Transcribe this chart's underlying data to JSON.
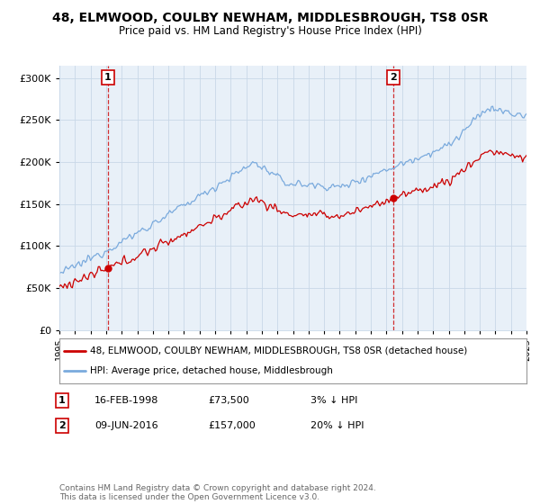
{
  "title1": "48, ELMWOOD, COULBY NEWHAM, MIDDLESBROUGH, TS8 0SR",
  "title2": "Price paid vs. HM Land Registry's House Price Index (HPI)",
  "ylim": [
    0,
    315000
  ],
  "yticks": [
    0,
    50000,
    100000,
    150000,
    200000,
    250000,
    300000
  ],
  "sale1_t": 1998.12,
  "sale1_p": 73500,
  "sale2_t": 2016.44,
  "sale2_p": 157000,
  "legend_line1": "48, ELMWOOD, COULBY NEWHAM, MIDDLESBROUGH, TS8 0SR (detached house)",
  "legend_line2": "HPI: Average price, detached house, Middlesbrough",
  "annotation1_date": "16-FEB-1998",
  "annotation1_price": "£73,500",
  "annotation1_hpi": "3% ↓ HPI",
  "annotation2_date": "09-JUN-2016",
  "annotation2_price": "£157,000",
  "annotation2_hpi": "20% ↓ HPI",
  "footer": "Contains HM Land Registry data © Crown copyright and database right 2024.\nThis data is licensed under the Open Government Licence v3.0.",
  "hpi_color": "#7aaadd",
  "price_color": "#cc0000",
  "plot_bg": "#e8f0f8",
  "grid_color": "#c8d8e8"
}
